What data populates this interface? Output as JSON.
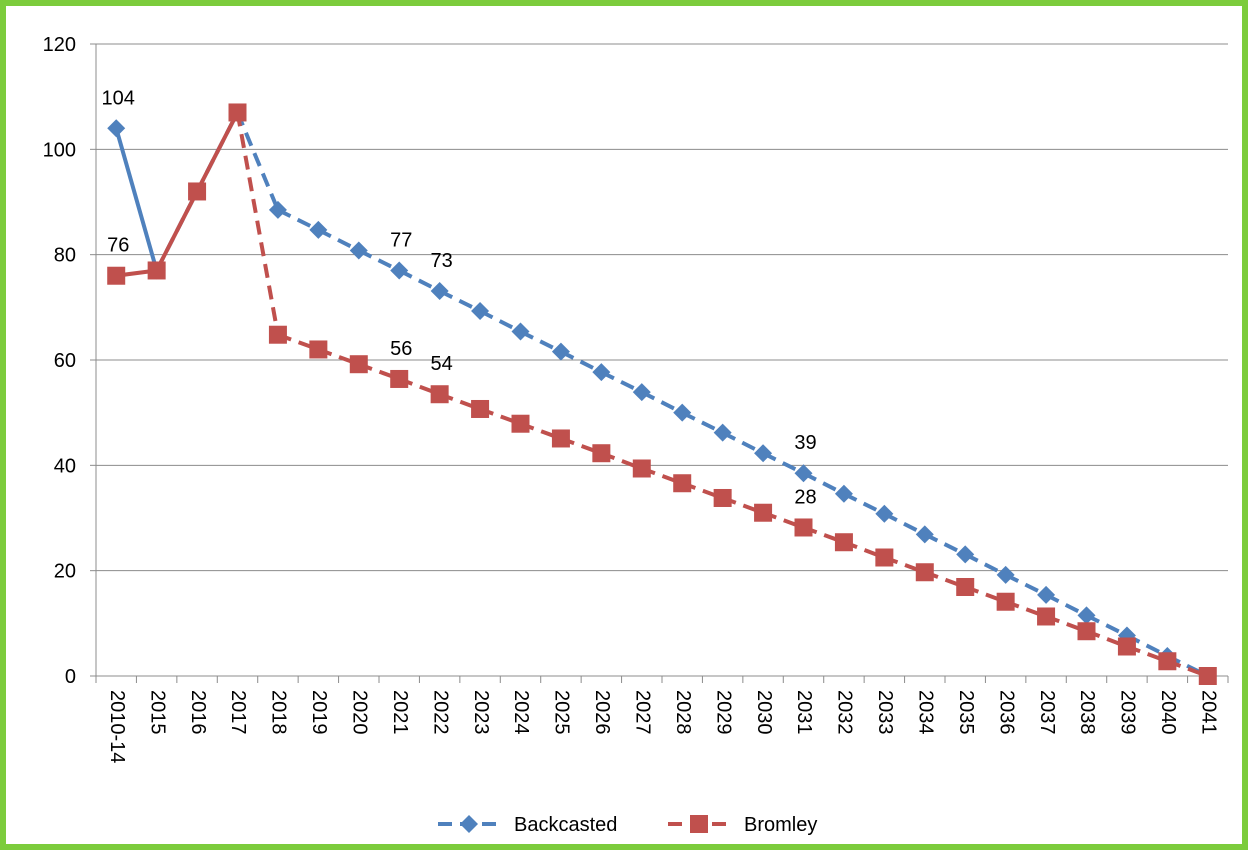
{
  "chart_data": {
    "type": "line",
    "title": "",
    "xlabel": "",
    "ylabel": "",
    "ylim": [
      0,
      120
    ],
    "yticks": [
      0,
      20,
      40,
      60,
      80,
      100,
      120
    ],
    "grid": true,
    "legend_position": "bottom",
    "categories": [
      "2010-14",
      "2015",
      "2016",
      "2017",
      "2018",
      "2019",
      "2020",
      "2021",
      "2022",
      "2023",
      "2024",
      "2025",
      "2026",
      "2027",
      "2028",
      "2029",
      "2030",
      "2031",
      "2032",
      "2033",
      "2034",
      "2035",
      "2036",
      "2037",
      "2038",
      "2039",
      "2040",
      "2041"
    ],
    "series": [
      {
        "name": "Backcasted",
        "color": "#4f81bd",
        "marker": "diamond",
        "values": [
          104,
          77,
          null,
          107,
          88.5,
          84.7,
          80.8,
          77,
          73.1,
          69.3,
          65.4,
          61.6,
          57.7,
          53.9,
          50,
          46.2,
          42.3,
          38.5,
          34.6,
          30.8,
          26.9,
          23.1,
          19.2,
          15.4,
          11.5,
          7.7,
          3.8,
          0
        ],
        "solid_until_index": 1,
        "data_labels": [
          {
            "index": 0,
            "text": "104"
          },
          {
            "index": 7,
            "text": "77"
          },
          {
            "index": 8,
            "text": "73"
          },
          {
            "index": 17,
            "text": "39"
          }
        ]
      },
      {
        "name": "Bromley",
        "color": "#c0504d",
        "marker": "square",
        "values": [
          76,
          77,
          92,
          107,
          64.8,
          62,
          59.2,
          56.4,
          53.5,
          50.7,
          47.9,
          45.1,
          42.3,
          39.4,
          36.6,
          33.8,
          31,
          28.2,
          25.4,
          22.5,
          19.7,
          16.9,
          14.1,
          11.3,
          8.5,
          5.6,
          2.8,
          0
        ],
        "solid_until_index": 3,
        "data_labels": [
          {
            "index": 0,
            "text": "76"
          },
          {
            "index": 7,
            "text": "56"
          },
          {
            "index": 8,
            "text": "54"
          },
          {
            "index": 17,
            "text": "28"
          }
        ]
      }
    ]
  }
}
